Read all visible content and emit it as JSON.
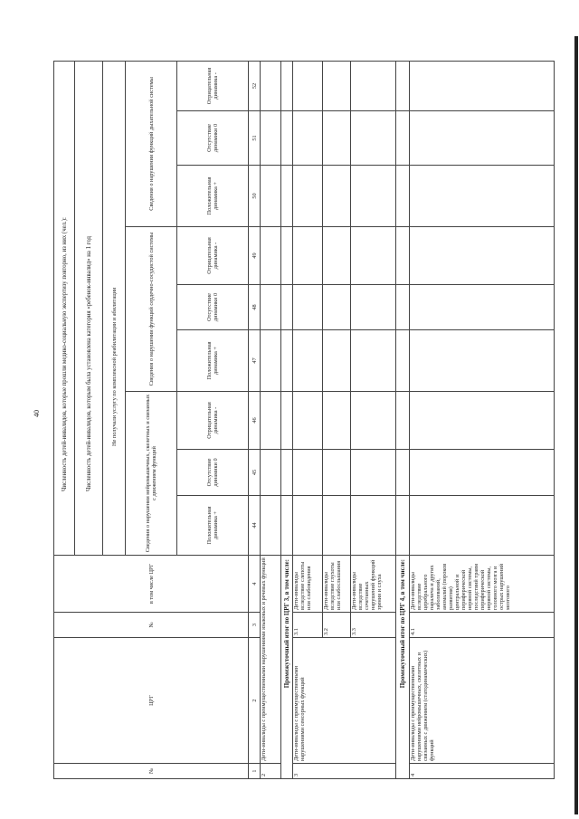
{
  "page_number": "40",
  "header": {
    "col_no": "№",
    "col_crg": "ЦРГ",
    "col_sub_no": "№",
    "col_incl_crg": "в том числе ЦРГ",
    "row1": "Численность детей-инвалидов, которые прошли медико-социальную экспертизу повторно, из них (чел.):",
    "row2": "Численность детей-инвалидов, которым была установлена категория «ребенок-инвалид» на 1 год",
    "row3": "Не получали услугу по комплексной реабилитации и абилитации",
    "groups": [
      "Сведения о нарушении нейромышечных, скелетных и связанных с движением функций",
      "Сведения о нарушении функций сердечно-сосудистой системы",
      "Сведения о нарушении функций дыхательной системы"
    ],
    "dynamics": [
      "Положительная динамика +",
      "Отсутствие динамики 0",
      "Отрицательная динамика -"
    ]
  },
  "col_numbers": [
    "1",
    "2",
    "3",
    "4",
    "44",
    "45",
    "46",
    "47",
    "48",
    "49",
    "50",
    "51",
    "52"
  ],
  "rows": {
    "r2": {
      "no": "2",
      "text": "Дети-инвалиды с преимущественными нарушениями языковых и речевых функций"
    },
    "subtotal3": "Промежуточный итог по ЦРГ 3, в том числе:",
    "r3": {
      "no": "3",
      "text": "Дети-инвалиды с преимущественными нарушениями сенсорных функций",
      "subs": [
        {
          "no": "3.1",
          "text": "Дети-инвалиды вследствие слепоты или слабовидения"
        },
        {
          "no": "3.2",
          "text": "Дети-инвалиды вследствие глухоты или слабослышания"
        },
        {
          "no": "3.3",
          "text": "Дети-инвалиды вследствие сочетанных нарушений функций зрения и слуха"
        }
      ]
    },
    "subtotal4": "Промежуточный итог по ЦРГ 4, в том числе:",
    "r4": {
      "no": "4",
      "text": "Дети-инвалиды с преимущественными нарушениями нейромышечных, скелетных и связанных с движением (статодинамических) функций",
      "subs": [
        {
          "no": "4.1",
          "text": "Дети-инвалиды вследствие церебрального паралича и других заболеваний, аномалий (пороков развития) центральной и периферической нервной системы, последствий травм периферической нервной системы, головного мозга и острых нарушений мозгового"
        }
      ]
    }
  }
}
